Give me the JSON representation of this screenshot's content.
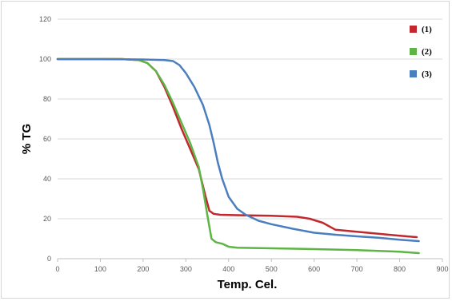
{
  "chart_data": {
    "type": "line",
    "xlabel": "Temp. Cel.",
    "ylabel": "% TG",
    "xlim": [
      0,
      900
    ],
    "ylim": [
      0,
      120
    ],
    "xticks": [
      0,
      100,
      200,
      300,
      400,
      500,
      600,
      700,
      800,
      900
    ],
    "yticks": [
      0,
      20,
      40,
      60,
      80,
      100,
      120
    ],
    "grid": "horizontal",
    "legend_position": "right",
    "series": [
      {
        "name": "(1)",
        "color": "#c0282d",
        "points": [
          [
            0,
            100
          ],
          [
            50,
            100
          ],
          [
            100,
            100
          ],
          [
            150,
            100
          ],
          [
            190,
            99.5
          ],
          [
            210,
            98
          ],
          [
            230,
            94
          ],
          [
            250,
            86
          ],
          [
            270,
            76
          ],
          [
            290,
            65
          ],
          [
            310,
            55
          ],
          [
            330,
            45
          ],
          [
            345,
            32
          ],
          [
            355,
            24
          ],
          [
            365,
            22.5
          ],
          [
            380,
            22
          ],
          [
            420,
            21.8
          ],
          [
            500,
            21.5
          ],
          [
            560,
            21
          ],
          [
            590,
            20
          ],
          [
            620,
            18
          ],
          [
            650,
            14.5
          ],
          [
            700,
            13.5
          ],
          [
            750,
            12.5
          ],
          [
            800,
            11.5
          ],
          [
            840,
            10.8
          ]
        ]
      },
      {
        "name": "(2)",
        "color": "#5eb444",
        "points": [
          [
            0,
            100
          ],
          [
            50,
            100
          ],
          [
            100,
            100
          ],
          [
            150,
            100
          ],
          [
            190,
            99.5
          ],
          [
            210,
            98
          ],
          [
            230,
            94
          ],
          [
            250,
            87
          ],
          [
            270,
            78
          ],
          [
            290,
            68
          ],
          [
            310,
            58
          ],
          [
            330,
            46
          ],
          [
            340,
            35
          ],
          [
            350,
            22
          ],
          [
            360,
            10
          ],
          [
            370,
            8.3
          ],
          [
            385,
            7.5
          ],
          [
            400,
            6
          ],
          [
            420,
            5.5
          ],
          [
            500,
            5.2
          ],
          [
            600,
            4.8
          ],
          [
            700,
            4.3
          ],
          [
            800,
            3.5
          ],
          [
            845,
            2.8
          ]
        ]
      },
      {
        "name": "(3)",
        "color": "#4a7ebf",
        "points": [
          [
            0,
            100
          ],
          [
            100,
            100
          ],
          [
            200,
            99.8
          ],
          [
            250,
            99.5
          ],
          [
            270,
            99
          ],
          [
            285,
            97
          ],
          [
            300,
            93
          ],
          [
            320,
            86
          ],
          [
            340,
            77
          ],
          [
            355,
            67
          ],
          [
            365,
            58
          ],
          [
            375,
            48
          ],
          [
            385,
            40
          ],
          [
            400,
            31
          ],
          [
            420,
            25
          ],
          [
            440,
            22
          ],
          [
            470,
            19
          ],
          [
            500,
            17.3
          ],
          [
            550,
            15
          ],
          [
            600,
            13
          ],
          [
            650,
            12
          ],
          [
            700,
            11.2
          ],
          [
            750,
            10.5
          ],
          [
            800,
            9.5
          ],
          [
            845,
            8.8
          ]
        ]
      }
    ]
  }
}
